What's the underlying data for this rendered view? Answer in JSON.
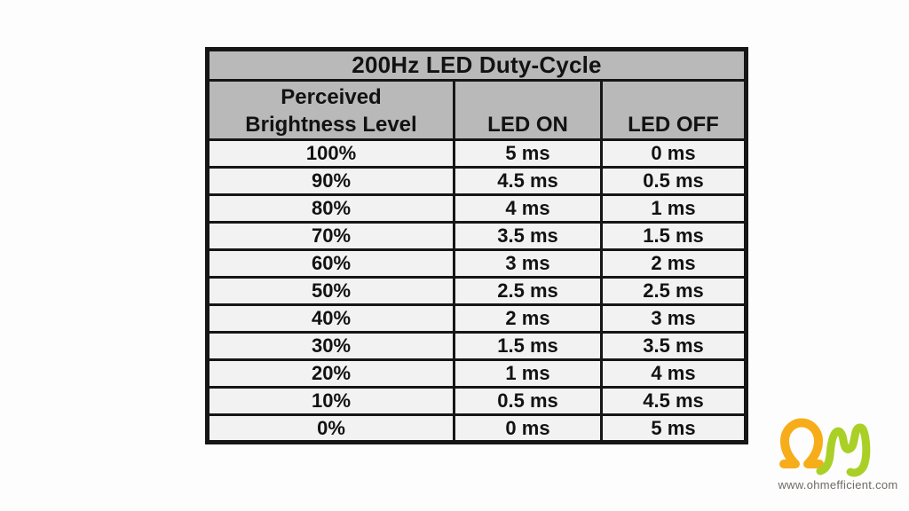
{
  "page": {
    "background": "#fdfdfd"
  },
  "table": {
    "title": "200Hz LED Duty-Cycle",
    "header": {
      "col1_line1": "Perceived",
      "col1_line2": "Brightness Level",
      "col2": "LED ON",
      "col3": "LED OFF"
    },
    "colors": {
      "header_bg": "#b9b9b9",
      "row_bg": "#f2f2f2",
      "border": "#161616"
    }
  },
  "chart_data": {
    "type": "table",
    "title": "200Hz LED Duty-Cycle",
    "columns": [
      "Perceived Brightness Level",
      "LED ON",
      "LED OFF"
    ],
    "rows": [
      [
        "100%",
        "5 ms",
        "0 ms"
      ],
      [
        "90%",
        "4.5 ms",
        "0.5 ms"
      ],
      [
        "80%",
        "4 ms",
        "1 ms"
      ],
      [
        "70%",
        "3.5 ms",
        "1.5 ms"
      ],
      [
        "60%",
        "3 ms",
        "2 ms"
      ],
      [
        "50%",
        "2.5 ms",
        "2.5 ms"
      ],
      [
        "40%",
        "2 ms",
        "3 ms"
      ],
      [
        "30%",
        "1.5 ms",
        "3.5 ms"
      ],
      [
        "20%",
        "1 ms",
        "4 ms"
      ],
      [
        "10%",
        "0.5 ms",
        "4.5 ms"
      ],
      [
        "0%",
        "0 ms",
        "5 ms"
      ]
    ]
  },
  "branding": {
    "website": "www.ohmefficient.com",
    "logo_colors": {
      "omega": "#f7ad19",
      "eta": "#aad026"
    }
  }
}
